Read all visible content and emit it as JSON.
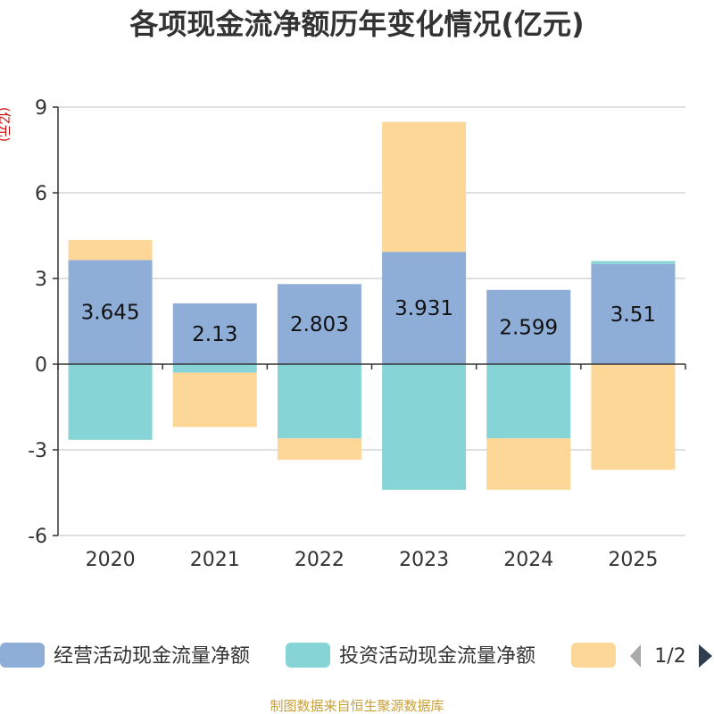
{
  "chart_data": {
    "type": "bar",
    "stacked": true,
    "title": "各项现金流净额历年变化情况(亿元)",
    "ylabel": "(亿元)",
    "xlabel": "",
    "ylim": [
      -6,
      9
    ],
    "yticks": [
      9,
      6,
      3,
      0,
      -3,
      -6
    ],
    "grid": true,
    "categories": [
      "2020",
      "2021",
      "2022",
      "2023",
      "2024",
      "2025"
    ],
    "series": [
      {
        "name": "经营活动现金流量净额",
        "color": "#8eaed8",
        "values": [
          3.645,
          2.13,
          2.803,
          3.931,
          2.599,
          3.51
        ],
        "labels": [
          "3.645",
          "2.13",
          "2.803",
          "3.931",
          "2.599",
          "3.51"
        ]
      },
      {
        "name": "投资活动现金流量净额",
        "color": "#86d4d6",
        "values": [
          -2.65,
          -0.3,
          -2.6,
          -4.4,
          -2.6,
          0.1
        ]
      },
      {
        "name": "",
        "color": "#fdd797",
        "values": [
          0.7,
          -1.9,
          -0.75,
          4.55,
          -1.8,
          -3.7
        ]
      }
    ],
    "legend_position": "bottom"
  },
  "legend": {
    "page": "1/2"
  },
  "source_text": "制图数据来自恒生聚源数据库"
}
